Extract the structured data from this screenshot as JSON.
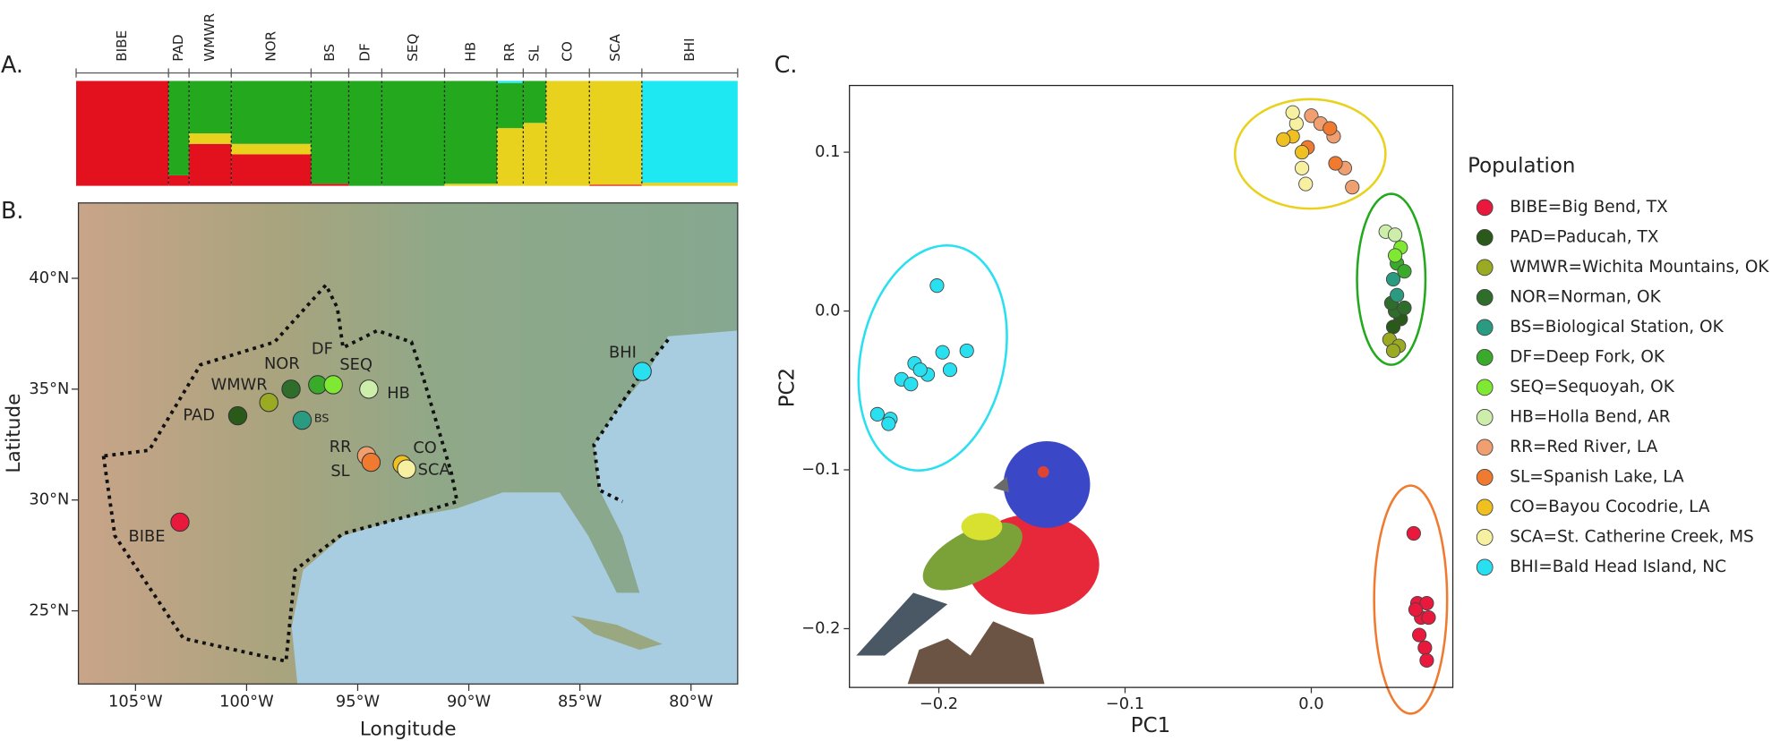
{
  "chart_data": [
    {
      "type": "structure",
      "panel": "A.",
      "categories": [
        "BIBE",
        "PAD",
        "WMWR",
        "NOR",
        "BS",
        "DF",
        "SEQ",
        "HB",
        "RR",
        "SL",
        "CO",
        "SCA",
        "BHI"
      ],
      "ylim": [
        0,
        1
      ],
      "series": [
        {
          "color": "#e3101e",
          "values": [
            1,
            0.1,
            0.4,
            0.3,
            0.02,
            0,
            0,
            0,
            0,
            0,
            0,
            0.01,
            0
          ]
        },
        {
          "color": "#e8d21e",
          "values": [
            0,
            0,
            0.1,
            0.1,
            0,
            0,
            0,
            0.02,
            0.55,
            0.6,
            1,
            0.99,
            0.03
          ]
        },
        {
          "color": "#23a81e",
          "values": [
            0,
            0.9,
            0.5,
            0.6,
            0.98,
            1,
            1,
            0.98,
            0.43,
            0.4,
            0,
            0,
            0
          ]
        },
        {
          "color": "#1ee8f2",
          "values": [
            0,
            0,
            0,
            0,
            0,
            0,
            0,
            0,
            0.02,
            0,
            0,
            0,
            0.97
          ]
        }
      ]
    },
    {
      "type": "map",
      "panel": "B.",
      "xlabel": "Longitude",
      "ylabel": "Latitude",
      "labels": [
        "BIBE",
        "PAD",
        "WMWR",
        "NOR",
        "BS",
        "DF",
        "SEQ",
        "HB",
        "RR",
        "SL",
        "CO",
        "SCA",
        "BHI"
      ],
      "x": [
        -103.0,
        -100.4,
        -99.0,
        -98.0,
        -97.5,
        -96.8,
        -96.1,
        -94.5,
        -94.6,
        -94.4,
        -93.0,
        -92.8,
        -82.2
      ],
      "y": [
        29.0,
        33.8,
        34.4,
        35.0,
        33.6,
        35.2,
        35.2,
        35.0,
        32.0,
        31.7,
        31.6,
        31.4,
        35.8
      ],
      "colors": [
        "#e8193c",
        "#2a5a1a",
        "#9aaa22",
        "#2e6e2a",
        "#2a9a80",
        "#3aaa2a",
        "#7ee832",
        "#cceeaa",
        "#f0a070",
        "#f07a30",
        "#f0c020",
        "#f6f0a0",
        "#28e0f0"
      ],
      "xlim": [
        -107.57,
        -77.9
      ],
      "ylim": [
        21.7,
        43.4
      ],
      "xticks": [
        {
          "value": -105,
          "label": "105°W"
        },
        {
          "value": -100,
          "label": "100°W"
        },
        {
          "value": -95,
          "label": "95°W"
        },
        {
          "value": -90,
          "label": "90°W"
        },
        {
          "value": -85,
          "label": "85°W"
        },
        {
          "value": -80,
          "label": "80°W"
        }
      ],
      "yticks": [
        {
          "value": 25,
          "label": "25°N"
        },
        {
          "value": 30,
          "label": "30°N"
        },
        {
          "value": 35,
          "label": "35°N"
        },
        {
          "value": 40,
          "label": "40°N"
        }
      ]
    },
    {
      "type": "scatter",
      "panel": "C.",
      "xlabel": "PC1",
      "ylabel": "PC2",
      "legend_title": "Population",
      "xlim": [
        -0.248,
        0.076
      ],
      "ylim": [
        -0.237,
        0.142
      ],
      "xticks": [
        {
          "value": -0.2,
          "label": "−0.2"
        },
        {
          "value": -0.1,
          "label": "−0.1"
        },
        {
          "value": 0,
          "label": "0.0"
        }
      ],
      "yticks": [
        {
          "value": -0.2,
          "label": "−0.2"
        },
        {
          "value": -0.1,
          "label": "−0.1"
        },
        {
          "value": 0,
          "label": "0.0"
        },
        0.1
      ],
      "series": [
        {
          "name": "BIBE=Big Bend, TX",
          "color": "#e8193c",
          "x": [
            0.055,
            0.057,
            0.062,
            0.059,
            0.063,
            0.058,
            0.061,
            0.062,
            0.056
          ],
          "y": [
            -0.14,
            -0.184,
            -0.184,
            -0.193,
            -0.193,
            -0.204,
            -0.212,
            -0.22,
            -0.188
          ]
        },
        {
          "name": "PAD=Paducah, TX",
          "color": "#2a5a1a",
          "x": [
            0.048,
            0.044
          ],
          "y": [
            -0.005,
            -0.01
          ]
        },
        {
          "name": "WMWR=Wichita Mountains, OK",
          "color": "#9aaa22",
          "x": [
            0.042,
            0.047,
            0.044
          ],
          "y": [
            -0.018,
            -0.022,
            -0.025
          ]
        },
        {
          "name": "NOR=Norman, OK",
          "color": "#2e6e2a",
          "x": [
            0.045,
            0.05,
            0.043
          ],
          "y": [
            0.0,
            0.002,
            0.005
          ]
        },
        {
          "name": "BS=Biological Station, OK",
          "color": "#2a9a80",
          "x": [
            0.046,
            0.044
          ],
          "y": [
            0.01,
            0.02
          ]
        },
        {
          "name": "DF=Deep Fork, OK",
          "color": "#3aaa2a",
          "x": [
            0.046,
            0.05
          ],
          "y": [
            0.03,
            0.025
          ]
        },
        {
          "name": "SEQ=Sequoyah, OK",
          "color": "#7ee832",
          "x": [
            0.048,
            0.045
          ],
          "y": [
            0.04,
            0.035
          ]
        },
        {
          "name": "HB=Holla Bend, AR",
          "color": "#cceeaa",
          "x": [
            0.04,
            0.045
          ],
          "y": [
            0.05,
            0.048
          ]
        },
        {
          "name": "RR=Red River, LA",
          "color": "#f0a070",
          "x": [
            0.0,
            0.005,
            0.012,
            0.018,
            0.022
          ],
          "y": [
            0.123,
            0.118,
            0.11,
            0.09,
            0.078
          ]
        },
        {
          "name": "SL=Spanish Lake, LA",
          "color": "#f07a30",
          "x": [
            0.01,
            -0.002,
            0.013
          ],
          "y": [
            0.115,
            0.103,
            0.093
          ]
        },
        {
          "name": "CO=Bayou Cocodrie, LA",
          "color": "#f0c020",
          "x": [
            -0.01,
            -0.005,
            -0.015
          ],
          "y": [
            0.11,
            0.1,
            0.108
          ]
        },
        {
          "name": "SCA=St. Catherine Creek, MS",
          "color": "#f6f0a0",
          "x": [
            -0.008,
            -0.005,
            -0.003,
            -0.01
          ],
          "y": [
            0.118,
            0.09,
            0.08,
            0.125
          ]
        },
        {
          "name": "BHI=Bald Head Island, NC",
          "color": "#28e0f0",
          "x": [
            -0.201,
            -0.185,
            -0.198,
            -0.213,
            -0.206,
            -0.22,
            -0.215,
            -0.233,
            -0.226,
            -0.227,
            -0.194,
            -0.21
          ],
          "y": [
            0.016,
            -0.025,
            -0.026,
            -0.033,
            -0.04,
            -0.043,
            -0.046,
            -0.065,
            -0.068,
            -0.071,
            -0.037,
            -0.037
          ]
        }
      ]
    }
  ]
}
